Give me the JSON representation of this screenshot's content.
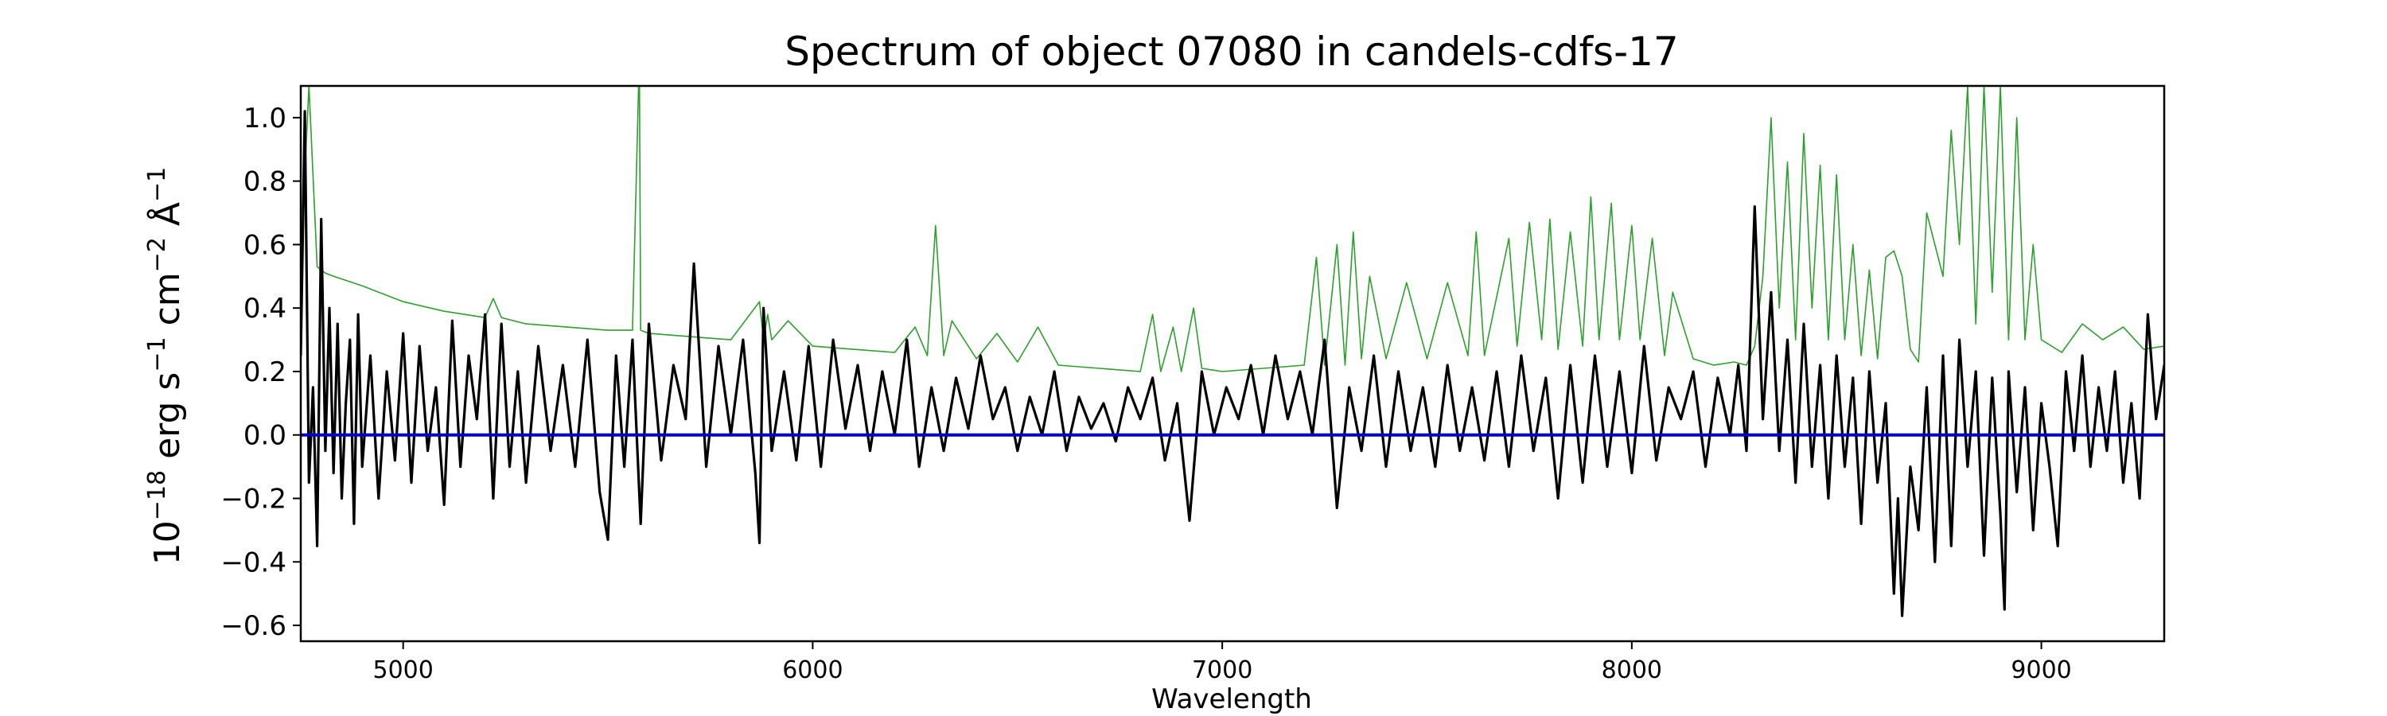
{
  "chart_data": {
    "type": "line",
    "title": "Spectrum of object 07080 in candels-cdfs-17",
    "xlabel": "Wavelength",
    "ylabel": {
      "base": "10",
      "exp": "−18",
      "text1": " erg s",
      "exp1": "−1",
      "text2": " cm",
      "exp2": "−2",
      "text3": " Å",
      "exp3": "−1"
    },
    "xlim": [
      4750,
      9300
    ],
    "ylim": [
      -0.65,
      1.1
    ],
    "xticks": [
      5000,
      6000,
      7000,
      8000,
      9000
    ],
    "xtick_labels": [
      "5000",
      "6000",
      "7000",
      "8000",
      "9000"
    ],
    "yticks": [
      -0.6,
      -0.4,
      -0.2,
      0.0,
      0.2,
      0.4,
      0.6,
      0.8,
      1.0
    ],
    "ytick_labels": [
      "−0.6",
      "−0.4",
      "−0.2",
      "0.0",
      "0.2",
      "0.4",
      "0.6",
      "0.8",
      "1.0"
    ],
    "grid": false,
    "series": [
      {
        "role": "error",
        "color": "#2ca02c",
        "x": [
          4750,
          4770,
          4790,
          4800,
          4810,
          4830,
          4900,
          5000,
          5100,
          5200,
          5220,
          5240,
          5300,
          5400,
          5500,
          5560,
          5575,
          5577,
          5580,
          5600,
          5700,
          5800,
          5870,
          5880,
          5890,
          5900,
          5940,
          6000,
          6100,
          6200,
          6250,
          6280,
          6300,
          6320,
          6340,
          6400,
          6450,
          6500,
          6550,
          6600,
          6700,
          6800,
          6830,
          6850,
          6880,
          6900,
          6930,
          6950,
          7000,
          7100,
          7200,
          7230,
          7250,
          7280,
          7300,
          7320,
          7340,
          7360,
          7400,
          7450,
          7500,
          7550,
          7600,
          7620,
          7640,
          7700,
          7720,
          7750,
          7780,
          7800,
          7820,
          7850,
          7880,
          7900,
          7920,
          7950,
          7970,
          8000,
          8020,
          8050,
          8080,
          8100,
          8150,
          8200,
          8250,
          8280,
          8300,
          8320,
          8340,
          8360,
          8380,
          8400,
          8420,
          8440,
          8460,
          8480,
          8500,
          8520,
          8540,
          8560,
          8580,
          8600,
          8620,
          8640,
          8660,
          8680,
          8700,
          8720,
          8760,
          8780,
          8800,
          8820,
          8840,
          8860,
          8880,
          8900,
          8920,
          8940,
          8960,
          8980,
          9000,
          9050,
          9100,
          9150,
          9200,
          9250,
          9300
        ],
        "y": [
          0.55,
          1.1,
          0.53,
          0.52,
          0.51,
          0.5,
          0.47,
          0.42,
          0.39,
          0.37,
          0.43,
          0.37,
          0.35,
          0.34,
          0.33,
          0.33,
          1.1,
          1.1,
          0.33,
          0.32,
          0.31,
          0.3,
          0.42,
          0.3,
          0.38,
          0.3,
          0.36,
          0.28,
          0.27,
          0.26,
          0.34,
          0.25,
          0.66,
          0.25,
          0.36,
          0.24,
          0.32,
          0.23,
          0.34,
          0.22,
          0.21,
          0.2,
          0.38,
          0.2,
          0.34,
          0.2,
          0.4,
          0.21,
          0.2,
          0.21,
          0.22,
          0.56,
          0.22,
          0.6,
          0.22,
          0.64,
          0.24,
          0.5,
          0.24,
          0.48,
          0.24,
          0.48,
          0.25,
          0.64,
          0.25,
          0.62,
          0.28,
          0.67,
          0.3,
          0.68,
          0.27,
          0.64,
          0.28,
          0.75,
          0.3,
          0.73,
          0.3,
          0.66,
          0.3,
          0.62,
          0.25,
          0.45,
          0.24,
          0.22,
          0.23,
          0.22,
          0.28,
          0.5,
          1.0,
          0.4,
          0.86,
          0.3,
          0.95,
          0.4,
          0.85,
          0.3,
          0.82,
          0.3,
          0.6,
          0.25,
          0.52,
          0.24,
          0.56,
          0.58,
          0.5,
          0.27,
          0.23,
          0.7,
          0.5,
          0.96,
          0.6,
          1.1,
          0.35,
          1.1,
          0.45,
          1.1,
          0.3,
          1.0,
          0.3,
          0.6,
          0.3,
          0.26,
          0.35,
          0.3,
          0.34,
          0.27,
          0.28
        ]
      },
      {
        "role": "flux",
        "color": "#000000",
        "x": [
          4750,
          4760,
          4770,
          4780,
          4790,
          4800,
          4810,
          4820,
          4830,
          4840,
          4850,
          4860,
          4870,
          4880,
          4890,
          4900,
          4920,
          4940,
          4960,
          4980,
          5000,
          5020,
          5040,
          5060,
          5080,
          5100,
          5120,
          5140,
          5160,
          5180,
          5200,
          5220,
          5240,
          5260,
          5280,
          5300,
          5330,
          5360,
          5390,
          5420,
          5450,
          5480,
          5500,
          5520,
          5540,
          5560,
          5580,
          5600,
          5630,
          5660,
          5690,
          5710,
          5740,
          5770,
          5800,
          5830,
          5860,
          5870,
          5880,
          5900,
          5930,
          5960,
          5990,
          6020,
          6050,
          6080,
          6110,
          6140,
          6170,
          6200,
          6230,
          6260,
          6290,
          6320,
          6350,
          6380,
          6410,
          6440,
          6470,
          6500,
          6530,
          6560,
          6590,
          6620,
          6650,
          6680,
          6710,
          6740,
          6770,
          6800,
          6830,
          6860,
          6890,
          6920,
          6950,
          6980,
          7010,
          7040,
          7070,
          7100,
          7130,
          7160,
          7190,
          7220,
          7250,
          7280,
          7310,
          7340,
          7370,
          7400,
          7430,
          7460,
          7490,
          7520,
          7550,
          7580,
          7610,
          7640,
          7670,
          7700,
          7730,
          7760,
          7790,
          7820,
          7850,
          7880,
          7910,
          7940,
          7970,
          8000,
          8030,
          8060,
          8090,
          8120,
          8150,
          8180,
          8210,
          8240,
          8260,
          8280,
          8300,
          8320,
          8340,
          8360,
          8380,
          8400,
          8420,
          8440,
          8460,
          8480,
          8500,
          8520,
          8540,
          8560,
          8580,
          8600,
          8620,
          8640,
          8650,
          8660,
          8680,
          8700,
          8720,
          8740,
          8760,
          8780,
          8800,
          8820,
          8840,
          8860,
          8880,
          8900,
          8910,
          8920,
          8940,
          8960,
          8980,
          9000,
          9020,
          9040,
          9060,
          9080,
          9100,
          9120,
          9140,
          9160,
          9180,
          9200,
          9220,
          9240,
          9260,
          9280,
          9300
        ],
        "y": [
          0.25,
          1.02,
          -0.15,
          0.15,
          -0.35,
          0.68,
          -0.05,
          0.4,
          -0.12,
          0.35,
          -0.2,
          0.1,
          0.3,
          -0.28,
          0.38,
          -0.1,
          0.25,
          -0.2,
          0.2,
          -0.08,
          0.32,
          -0.15,
          0.28,
          -0.05,
          0.15,
          -0.22,
          0.36,
          -0.1,
          0.25,
          0.05,
          0.38,
          -0.2,
          0.35,
          -0.1,
          0.2,
          -0.15,
          0.28,
          -0.05,
          0.22,
          -0.1,
          0.3,
          -0.18,
          -0.33,
          0.25,
          -0.1,
          0.3,
          -0.28,
          0.35,
          -0.08,
          0.22,
          0.05,
          0.54,
          -0.1,
          0.28,
          0.0,
          0.3,
          -0.12,
          -0.34,
          0.4,
          -0.05,
          0.2,
          -0.08,
          0.28,
          -0.1,
          0.3,
          0.02,
          0.22,
          -0.05,
          0.2,
          0.0,
          0.3,
          -0.1,
          0.15,
          -0.05,
          0.18,
          0.02,
          0.25,
          0.05,
          0.15,
          -0.05,
          0.12,
          0.0,
          0.2,
          -0.05,
          0.12,
          0.02,
          0.1,
          -0.02,
          0.15,
          0.05,
          0.18,
          -0.08,
          0.1,
          -0.27,
          0.2,
          0.0,
          0.15,
          0.05,
          0.22,
          0.0,
          0.25,
          0.05,
          0.2,
          0.0,
          0.3,
          -0.23,
          0.15,
          -0.05,
          0.25,
          -0.1,
          0.2,
          -0.05,
          0.15,
          -0.1,
          0.22,
          -0.05,
          0.15,
          -0.08,
          0.2,
          -0.1,
          0.25,
          -0.05,
          0.18,
          -0.2,
          0.22,
          -0.15,
          0.25,
          -0.1,
          0.2,
          -0.12,
          0.28,
          -0.08,
          0.15,
          0.05,
          0.2,
          -0.1,
          0.18,
          0.0,
          0.22,
          -0.05,
          0.72,
          0.05,
          0.45,
          -0.05,
          0.3,
          -0.15,
          0.35,
          -0.1,
          0.22,
          -0.2,
          0.25,
          -0.1,
          0.18,
          -0.28,
          0.2,
          -0.15,
          0.1,
          -0.5,
          -0.2,
          -0.57,
          -0.1,
          -0.3,
          0.15,
          -0.4,
          0.25,
          -0.35,
          0.3,
          -0.1,
          0.2,
          -0.38,
          0.18,
          -0.25,
          -0.55,
          0.2,
          -0.18,
          0.15,
          -0.3,
          0.1,
          -0.1,
          -0.35,
          0.2,
          -0.05,
          0.25,
          -0.1,
          0.15,
          -0.05,
          0.2,
          -0.15,
          0.1,
          -0.2,
          0.38,
          0.05,
          0.22
        ]
      },
      {
        "role": "zero",
        "color": "#0000cc",
        "x": [
          4750,
          9300
        ],
        "y": [
          0.0,
          0.0
        ]
      }
    ]
  }
}
